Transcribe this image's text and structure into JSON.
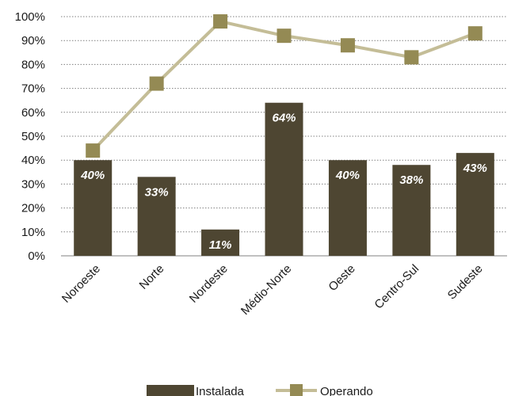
{
  "chart_data": {
    "type": "bar",
    "categories": [
      "Noroeste",
      "Norte",
      "Nordeste",
      "Médio-Norte",
      "Oeste",
      "Centro-Sul",
      "Sudeste"
    ],
    "series": [
      {
        "name": "Instalada",
        "type": "bar",
        "values": [
          40,
          33,
          11,
          64,
          40,
          38,
          43
        ],
        "labels": [
          "40%",
          "33%",
          "11%",
          "64%",
          "40%",
          "38%",
          "43%"
        ],
        "color": "#4e4632"
      },
      {
        "name": "Operando",
        "type": "line",
        "values": [
          44,
          72,
          98,
          92,
          88,
          83,
          93
        ],
        "color": "#c4bd97",
        "marker_color": "#948a54"
      }
    ],
    "yticks": [
      "0%",
      "10%",
      "20%",
      "30%",
      "40%",
      "50%",
      "60%",
      "70%",
      "80%",
      "90%",
      "100%"
    ],
    "ylim": [
      0,
      100
    ],
    "grid": "horizontal-dotted",
    "legend_position": "bottom"
  }
}
